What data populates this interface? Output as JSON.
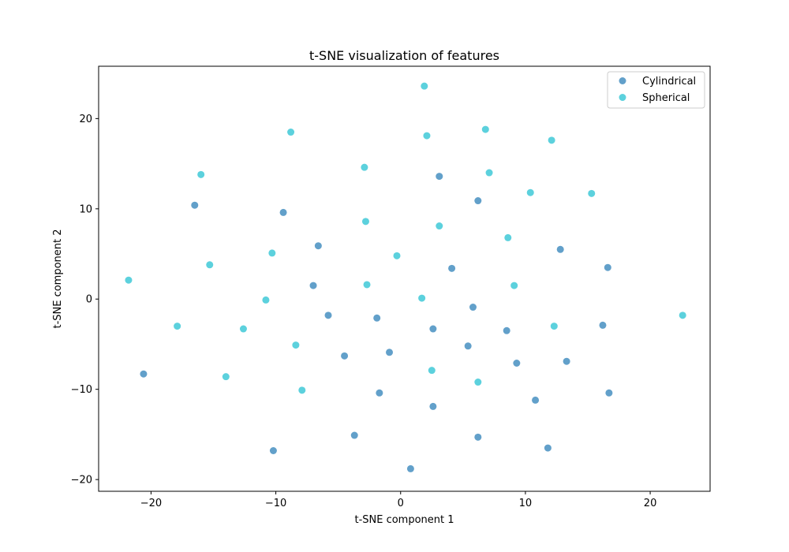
{
  "chart_data": {
    "type": "scatter",
    "title": "t-SNE visualization of features",
    "xlabel": "t-SNE component 1",
    "ylabel": "t-SNE component 2",
    "xlim": [
      -24.2,
      24.8
    ],
    "ylim": [
      -21.3,
      25.8
    ],
    "xticks": [
      -20,
      -10,
      0,
      10,
      20
    ],
    "yticks": [
      -20,
      -10,
      0,
      10,
      20
    ],
    "xtick_labels": [
      "−20",
      "−10",
      "0",
      "10",
      "20"
    ],
    "ytick_labels": [
      "−20",
      "−10",
      "0",
      "10",
      "20"
    ],
    "grid": false,
    "legend_position": "top-right",
    "series": [
      {
        "name": "Cylindrical",
        "color": "#1f77b4",
        "points": [
          [
            -16.5,
            10.4
          ],
          [
            -9.4,
            9.6
          ],
          [
            -6.6,
            5.9
          ],
          [
            3.1,
            13.6
          ],
          [
            6.2,
            10.9
          ],
          [
            12.8,
            5.5
          ],
          [
            16.6,
            3.5
          ],
          [
            4.1,
            3.4
          ],
          [
            -7.0,
            1.5
          ],
          [
            5.8,
            -0.9
          ],
          [
            -5.8,
            -1.8
          ],
          [
            -1.9,
            -2.1
          ],
          [
            2.6,
            -3.3
          ],
          [
            8.5,
            -3.5
          ],
          [
            16.2,
            -2.9
          ],
          [
            5.4,
            -5.2
          ],
          [
            -4.5,
            -6.3
          ],
          [
            -0.9,
            -5.9
          ],
          [
            9.3,
            -7.1
          ],
          [
            13.3,
            -6.9
          ],
          [
            -20.6,
            -8.3
          ],
          [
            -1.7,
            -10.4
          ],
          [
            10.8,
            -11.2
          ],
          [
            16.7,
            -10.4
          ],
          [
            2.6,
            -11.9
          ],
          [
            -3.7,
            -15.1
          ],
          [
            6.2,
            -15.3
          ],
          [
            -10.2,
            -16.8
          ],
          [
            11.8,
            -16.5
          ],
          [
            0.8,
            -18.8
          ]
        ]
      },
      {
        "name": "Spherical",
        "color": "#17becf",
        "points": [
          [
            1.9,
            23.6
          ],
          [
            -8.8,
            18.5
          ],
          [
            6.8,
            18.8
          ],
          [
            2.1,
            18.1
          ],
          [
            12.1,
            17.6
          ],
          [
            -16.0,
            13.8
          ],
          [
            -2.9,
            14.6
          ],
          [
            7.1,
            14.0
          ],
          [
            10.4,
            11.8
          ],
          [
            15.3,
            11.7
          ],
          [
            -2.8,
            8.6
          ],
          [
            3.1,
            8.1
          ],
          [
            8.6,
            6.8
          ],
          [
            -10.3,
            5.1
          ],
          [
            -0.3,
            4.8
          ],
          [
            -15.3,
            3.8
          ],
          [
            -21.8,
            2.1
          ],
          [
            -2.7,
            1.6
          ],
          [
            9.1,
            1.5
          ],
          [
            1.7,
            0.1
          ],
          [
            -10.8,
            -0.1
          ],
          [
            22.6,
            -1.8
          ],
          [
            -17.9,
            -3.0
          ],
          [
            -12.6,
            -3.3
          ],
          [
            12.3,
            -3.0
          ],
          [
            -8.4,
            -5.1
          ],
          [
            2.5,
            -7.9
          ],
          [
            -14.0,
            -8.6
          ],
          [
            6.2,
            -9.2
          ],
          [
            -7.9,
            -10.1
          ]
        ]
      }
    ]
  }
}
